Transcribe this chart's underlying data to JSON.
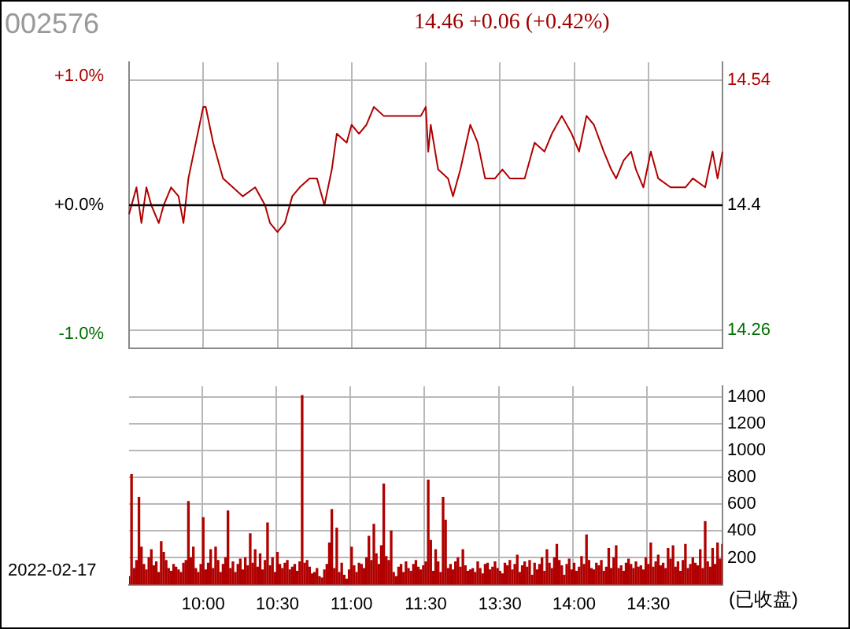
{
  "chart_data": [
    {
      "type": "line",
      "title": "002576",
      "subtitle": "14.46 +0.06 (+0.42%)",
      "categories": [
        null,
        null,
        null,
        null,
        null,
        null,
        null,
        null,
        null,
        null,
        null,
        null,
        null,
        null,
        null,
        null,
        null,
        null,
        null,
        null,
        null,
        null,
        null,
        null,
        null,
        null,
        null,
        null,
        null,
        null,
        null,
        null,
        null,
        null,
        null,
        null,
        null,
        null,
        null,
        null,
        null,
        null,
        null,
        null,
        null,
        null,
        null,
        null,
        null,
        null,
        null,
        null,
        null,
        null,
        null,
        null,
        null,
        null,
        null,
        null,
        null,
        null,
        null,
        null,
        null,
        null,
        null,
        null,
        null,
        null,
        null,
        null,
        null,
        null,
        null,
        null,
        null,
        null,
        null,
        null,
        null,
        null,
        null,
        null,
        null,
        null,
        null,
        null,
        null,
        null,
        null,
        null,
        null,
        null,
        null,
        null,
        null,
        null,
        null,
        null,
        null,
        null,
        null,
        null,
        null,
        null,
        null,
        null,
        null,
        null,
        null,
        null,
        null,
        null,
        null,
        null,
        null,
        null,
        null,
        null,
        null,
        null,
        null,
        null,
        null,
        null,
        null,
        null,
        null,
        null,
        null,
        null,
        null,
        null,
        null,
        null,
        null,
        null,
        null,
        null,
        null,
        null,
        null,
        null,
        null,
        null,
        null,
        null,
        null,
        null,
        null,
        null,
        null,
        null,
        null,
        null,
        null,
        null,
        null,
        null,
        null,
        null,
        null,
        null,
        null,
        null,
        null,
        null,
        null,
        null,
        null,
        null,
        null,
        null,
        null,
        null,
        null,
        null,
        null,
        null,
        null,
        null,
        null,
        null,
        null,
        null,
        null,
        null,
        null,
        null,
        null,
        null,
        null,
        null,
        null,
        null,
        null,
        null,
        null,
        null,
        null,
        null,
        null,
        null,
        null,
        null,
        null,
        null,
        null,
        null,
        null,
        null,
        null,
        null,
        null,
        null,
        null,
        null,
        null,
        null,
        null,
        null,
        null,
        null,
        null,
        null,
        null,
        null,
        null,
        null,
        null,
        null,
        null,
        null,
        null,
        null,
        null,
        null,
        null,
        null,
        null
      ],
      "series": [
        {
          "color": "#b00000",
          "values": [
            14.39,
            null,
            null,
            14.42,
            null,
            14.38,
            null,
            14.42,
            null,
            14.4,
            null,
            null,
            14.38,
            null,
            14.4,
            null,
            null,
            14.42,
            null,
            null,
            14.41,
            null,
            14.38,
            null,
            14.43,
            null,
            null,
            14.47,
            null,
            null,
            14.51,
            14.51,
            null,
            null,
            14.47,
            null,
            null,
            null,
            14.43,
            null,
            null,
            null,
            14.42,
            null,
            null,
            null,
            14.41,
            null,
            null,
            null,
            null,
            14.42,
            null,
            null,
            null,
            14.4,
            null,
            14.38,
            null,
            null,
            14.37,
            null,
            null,
            14.38,
            null,
            null,
            14.41,
            null,
            null,
            14.42,
            null,
            null,
            null,
            14.43,
            null,
            null,
            14.43,
            null,
            null,
            14.4,
            null,
            null,
            14.44,
            null,
            14.48,
            null,
            null,
            null,
            14.47,
            null,
            14.49,
            null,
            null,
            14.48,
            null,
            null,
            14.49,
            null,
            null,
            14.51,
            null,
            null,
            null,
            14.5,
            null,
            null,
            null,
            null,
            null,
            null,
            14.5,
            null,
            null,
            null,
            14.5,
            null,
            null,
            null,
            14.5,
            null,
            14.51,
            14.46,
            14.49,
            null,
            null,
            14.44,
            null,
            null,
            null,
            14.43,
            null,
            14.41,
            null,
            null,
            14.44,
            null,
            null,
            null,
            14.49,
            null,
            null,
            14.47,
            null,
            null,
            14.43,
            null,
            null,
            null,
            14.43,
            null,
            null,
            14.44,
            null,
            null,
            14.43,
            null,
            null,
            14.43,
            null,
            null,
            14.43,
            null,
            null,
            null,
            14.47,
            null,
            null,
            null,
            14.46,
            null,
            null,
            14.48,
            null,
            null,
            null,
            14.5,
            null,
            null,
            null,
            14.48,
            null,
            null,
            14.46,
            null,
            null,
            14.5,
            null,
            null,
            14.49,
            null,
            null,
            null,
            14.46,
            null,
            null,
            14.44,
            null,
            14.43,
            null,
            null,
            14.45,
            null,
            null,
            14.46,
            null,
            14.44,
            null,
            null,
            14.42,
            null,
            null,
            14.46,
            null,
            null,
            14.43,
            null,
            null,
            null,
            null,
            14.42,
            null,
            null,
            14.42,
            null,
            null,
            14.42,
            null,
            null,
            14.43,
            null,
            null,
            null,
            null,
            14.42,
            null,
            null,
            14.46,
            null,
            14.43,
            null,
            14.46
          ]
        }
      ],
      "ylim": [
        14.24,
        14.56
      ],
      "yticks": [
        14.26,
        14.4,
        14.54
      ],
      "y2lim": [
        -1.11,
        1.11
      ],
      "y2ticks": [
        {
          "value": -1,
          "label": "-1.0%"
        },
        {
          "value": 0,
          "label": "+0.0%"
        },
        {
          "value": 1,
          "label": "+1.0%"
        }
      ],
      "ref_lines": [
        {
          "axis": "y",
          "value": 14.4,
          "color": "#000000"
        }
      ],
      "grid": true,
      "tick_labels": "y"
    },
    {
      "type": "bar",
      "annotations": [
        "2022-02-17",
        "(已收盘)"
      ],
      "categories": [
        null,
        null,
        null,
        null,
        null,
        null,
        null,
        null,
        null,
        null,
        null,
        null,
        null,
        null,
        null,
        null,
        null,
        null,
        null,
        null,
        null,
        null,
        null,
        null,
        null,
        null,
        null,
        null,
        null,
        null,
        "10:00",
        null,
        null,
        null,
        null,
        null,
        null,
        null,
        null,
        null,
        null,
        null,
        null,
        null,
        null,
        null,
        null,
        null,
        null,
        null,
        null,
        null,
        null,
        null,
        null,
        null,
        null,
        null,
        null,
        null,
        "10:30",
        null,
        null,
        null,
        null,
        null,
        null,
        null,
        null,
        null,
        null,
        null,
        null,
        null,
        null,
        null,
        null,
        null,
        null,
        null,
        null,
        null,
        null,
        null,
        null,
        null,
        null,
        null,
        null,
        null,
        "11:00",
        null,
        null,
        null,
        null,
        null,
        null,
        null,
        null,
        null,
        null,
        null,
        null,
        null,
        null,
        null,
        null,
        null,
        null,
        null,
        null,
        null,
        null,
        null,
        null,
        null,
        null,
        null,
        null,
        null,
        "11:30",
        null,
        null,
        null,
        null,
        null,
        null,
        null,
        null,
        null,
        null,
        null,
        null,
        null,
        null,
        null,
        null,
        null,
        null,
        null,
        null,
        null,
        null,
        null,
        null,
        null,
        null,
        null,
        null,
        null,
        "13:30",
        null,
        null,
        null,
        null,
        null,
        null,
        null,
        null,
        null,
        null,
        null,
        null,
        null,
        null,
        null,
        null,
        null,
        null,
        null,
        null,
        null,
        null,
        null,
        null,
        null,
        null,
        null,
        null,
        null,
        "14:00",
        null,
        null,
        null,
        null,
        null,
        null,
        null,
        null,
        null,
        null,
        null,
        null,
        null,
        null,
        null,
        null,
        null,
        null,
        null,
        null,
        null,
        null,
        null,
        null,
        null,
        null,
        null,
        null,
        null,
        "14:30",
        null,
        null,
        null,
        null,
        null,
        null,
        null,
        null,
        null,
        null,
        null,
        null,
        null,
        null,
        null,
        null,
        null,
        null,
        null,
        null,
        null,
        null,
        null,
        null,
        null,
        null,
        null,
        null,
        null,
        null
      ],
      "values": [
        60,
        820,
        120,
        180,
        650,
        280,
        150,
        110,
        200,
        260,
        140,
        170,
        90,
        320,
        240,
        180,
        120,
        100,
        150,
        130,
        110,
        90,
        160,
        180,
        620,
        200,
        280,
        120,
        90,
        150,
        500,
        110,
        160,
        260,
        120,
        280,
        180,
        90,
        150,
        200,
        550,
        120,
        170,
        90,
        150,
        190,
        110,
        200,
        140,
        380,
        160,
        260,
        130,
        230,
        110,
        180,
        460,
        140,
        200,
        90,
        240,
        150,
        120,
        160,
        180,
        110,
        130,
        150,
        100,
        170,
        1410,
        160,
        180,
        130,
        80,
        90,
        120,
        60,
        50,
        110,
        150,
        310,
        560,
        120,
        420,
        90,
        160,
        70,
        40,
        110,
        280,
        140,
        90,
        160,
        150,
        120,
        200,
        360,
        180,
        450,
        230,
        150,
        290,
        750,
        210,
        180,
        400,
        90,
        60,
        130,
        150,
        90,
        170,
        120,
        100,
        150,
        180,
        130,
        110,
        140,
        170,
        780,
        330,
        100,
        260,
        170,
        90,
        650,
        480,
        120,
        150,
        110,
        170,
        200,
        130,
        260,
        140,
        100,
        110,
        120,
        90,
        170,
        120,
        80,
        150,
        160,
        110,
        130,
        170,
        120,
        100,
        80,
        160,
        140,
        180,
        110,
        150,
        220,
        90,
        140,
        170,
        130,
        180,
        70,
        160,
        110,
        150,
        200,
        100,
        260,
        160,
        120,
        200,
        300,
        180,
        140,
        70,
        150,
        190,
        110,
        160,
        100,
        130,
        210,
        150,
        370,
        180,
        120,
        110,
        160,
        140,
        180,
        100,
        130,
        270,
        120,
        200,
        290,
        120,
        140,
        100,
        160,
        190,
        150,
        120,
        170,
        130,
        140,
        110,
        200,
        150,
        310,
        130,
        170,
        220,
        140,
        160,
        120,
        270,
        190,
        290,
        130,
        170,
        100,
        180,
        300,
        120,
        150,
        200,
        160,
        140,
        260,
        120,
        470,
        170,
        130,
        270,
        150,
        310,
        190,
        300
      ],
      "color": "#b00000",
      "ylim": [
        0,
        1480
      ],
      "yticks": [
        200,
        400,
        600,
        800,
        1000,
        1200,
        1400
      ],
      "grid": true
    }
  ]
}
